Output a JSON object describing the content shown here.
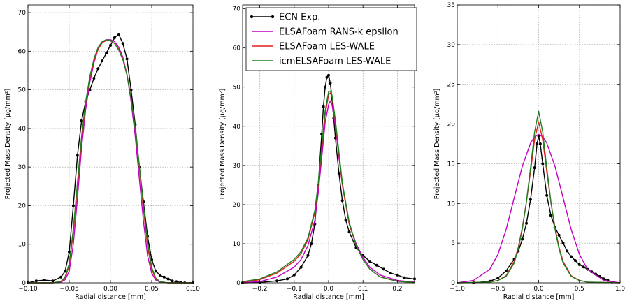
{
  "figure": {
    "legend": {
      "position": "upper-left of middle panel",
      "entries": [
        {
          "label": "ECN Exp.",
          "color": "#000000",
          "marker": "dot"
        },
        {
          "label": "ELSAFoam RANS-k epsilon",
          "color": "#c000c0",
          "marker": "none"
        },
        {
          "label": "ELSAFoam LES-WALE",
          "color": "#e02020",
          "marker": "none"
        },
        {
          "label": "icmELSAFoam LES-WALE",
          "color": "#207f20",
          "marker": "none"
        }
      ]
    }
  },
  "chart_data": [
    {
      "type": "line",
      "xlabel": "Radial distance [mm]",
      "ylabel": "Projected Mass Density [μg/mm²]",
      "xlim": [
        -0.1,
        0.1
      ],
      "ylim": [
        0,
        72
      ],
      "xticks": [
        -0.1,
        -0.05,
        0.0,
        0.05,
        0.1
      ],
      "xtick_labels": [
        "−0.10",
        "−0.05",
        "0.00",
        "0.05",
        "0.10"
      ],
      "yticks": [
        0,
        10,
        20,
        30,
        40,
        50,
        60,
        70
      ],
      "grid": true,
      "series": [
        {
          "name": "ECN Exp.",
          "color": "#000000",
          "marker": true,
          "x": [
            -0.1,
            -0.09,
            -0.08,
            -0.07,
            -0.06,
            -0.055,
            -0.05,
            -0.045,
            -0.04,
            -0.035,
            -0.03,
            -0.025,
            -0.02,
            -0.015,
            -0.01,
            -0.005,
            0.0,
            0.005,
            0.01,
            0.015,
            0.02,
            0.025,
            0.03,
            0.035,
            0.04,
            0.045,
            0.05,
            0.055,
            0.06,
            0.065,
            0.07,
            0.075,
            0.08,
            0.085,
            0.09,
            0.1
          ],
          "y": [
            0,
            0.5,
            0.7,
            0.5,
            1.5,
            3,
            8,
            20,
            33,
            42,
            47,
            50,
            53,
            55.5,
            57.5,
            59.5,
            61.5,
            63.5,
            64.4,
            62,
            58,
            50,
            41,
            30,
            21,
            12,
            6,
            3,
            2,
            1.5,
            1,
            0.5,
            0.3,
            0.1,
            0,
            0
          ]
        },
        {
          "name": "ELSAFoam RANS-k epsilon",
          "color": "#c000c0",
          "marker": false,
          "x": [
            -0.1,
            -0.07,
            -0.06,
            -0.055,
            -0.05,
            -0.045,
            -0.04,
            -0.035,
            -0.03,
            -0.025,
            -0.02,
            -0.015,
            -0.01,
            -0.005,
            0.0,
            0.005,
            0.01,
            0.015,
            0.02,
            0.025,
            0.03,
            0.035,
            0.04,
            0.045,
            0.05,
            0.055,
            0.06,
            0.07,
            0.1
          ],
          "y": [
            0,
            0,
            0.2,
            0.8,
            3,
            10,
            22,
            35,
            45,
            52,
            57,
            60.5,
            62.3,
            63,
            63,
            62.5,
            61,
            58.5,
            54,
            47,
            38,
            27,
            16,
            7,
            2.5,
            0.7,
            0.2,
            0,
            0
          ]
        },
        {
          "name": "ELSAFoam LES-WALE",
          "color": "#e02020",
          "marker": false,
          "x": [
            -0.1,
            -0.07,
            -0.06,
            -0.055,
            -0.05,
            -0.045,
            -0.04,
            -0.035,
            -0.03,
            -0.025,
            -0.02,
            -0.015,
            -0.01,
            -0.005,
            0.0,
            0.005,
            0.01,
            0.015,
            0.02,
            0.025,
            0.03,
            0.035,
            0.04,
            0.045,
            0.05,
            0.055,
            0.06,
            0.07,
            0.1
          ],
          "y": [
            0,
            0,
            0.3,
            1.2,
            4.5,
            13,
            25,
            37,
            46.5,
            53,
            57.5,
            60.5,
            62.2,
            62.8,
            62.7,
            62,
            60.5,
            58,
            54,
            48,
            40,
            30,
            19,
            9.5,
            3.5,
            1,
            0.3,
            0,
            0
          ]
        },
        {
          "name": "icmELSAFoam LES-WALE",
          "color": "#207f20",
          "marker": false,
          "x": [
            -0.1,
            -0.07,
            -0.06,
            -0.055,
            -0.05,
            -0.045,
            -0.04,
            -0.035,
            -0.03,
            -0.025,
            -0.02,
            -0.015,
            -0.01,
            -0.005,
            0.0,
            0.005,
            0.01,
            0.015,
            0.02,
            0.025,
            0.03,
            0.035,
            0.04,
            0.045,
            0.05,
            0.055,
            0.06,
            0.07,
            0.1
          ],
          "y": [
            0,
            0,
            0.4,
            1.5,
            5,
            14,
            26,
            38,
            47,
            53.5,
            58,
            61,
            62.5,
            63,
            62.8,
            62,
            60.3,
            57.8,
            53.8,
            47.8,
            40,
            30.5,
            20,
            10.5,
            4,
            1.2,
            0.3,
            0,
            0
          ]
        }
      ]
    },
    {
      "type": "line",
      "xlabel": "Radial distance [mm]",
      "ylabel": "Projected Mass Density [μg/mm²]",
      "xlim": [
        -0.25,
        0.25
      ],
      "ylim": [
        0,
        71
      ],
      "xticks": [
        -0.2,
        -0.1,
        0.0,
        0.1,
        0.2
      ],
      "xtick_labels": [
        "−0.2",
        "−0.1",
        "0.0",
        "0.1",
        "0.2"
      ],
      "yticks": [
        0,
        10,
        20,
        30,
        40,
        50,
        60,
        70
      ],
      "grid": true,
      "series": [
        {
          "name": "ECN Exp.",
          "color": "#000000",
          "marker": true,
          "x": [
            -0.25,
            -0.2,
            -0.15,
            -0.12,
            -0.1,
            -0.08,
            -0.06,
            -0.05,
            -0.04,
            -0.03,
            -0.02,
            -0.015,
            -0.01,
            -0.005,
            0.0,
            0.005,
            0.01,
            0.015,
            0.02,
            0.03,
            0.04,
            0.05,
            0.06,
            0.08,
            0.1,
            0.12,
            0.14,
            0.16,
            0.18,
            0.2,
            0.22,
            0.25
          ],
          "y": [
            0,
            0.1,
            0.5,
            1,
            2,
            4,
            7,
            10,
            15,
            25,
            38,
            45,
            50,
            52.5,
            53,
            51,
            47,
            42,
            37,
            28,
            21,
            16,
            13,
            9,
            7,
            5.5,
            4.5,
            3.5,
            2.5,
            2,
            1.3,
            1
          ]
        },
        {
          "name": "ELSAFoam RANS-k epsilon",
          "color": "#c000c0",
          "marker": false,
          "x": [
            -0.25,
            -0.2,
            -0.15,
            -0.1,
            -0.08,
            -0.06,
            -0.04,
            -0.03,
            -0.02,
            -0.01,
            0.0,
            0.005,
            0.01,
            0.02,
            0.03,
            0.04,
            0.06,
            0.08,
            0.1,
            0.12,
            0.15,
            0.2,
            0.25
          ],
          "y": [
            0.1,
            0.3,
            1.5,
            4,
            6,
            9.5,
            16,
            23,
            32,
            41,
            45.5,
            46.5,
            45.5,
            40,
            32,
            25,
            15,
            10,
            6.5,
            4,
            2,
            0.6,
            0.2
          ]
        },
        {
          "name": "ELSAFoam LES-WALE",
          "color": "#e02020",
          "marker": false,
          "x": [
            -0.25,
            -0.2,
            -0.15,
            -0.1,
            -0.08,
            -0.06,
            -0.04,
            -0.03,
            -0.02,
            -0.01,
            0.0,
            0.005,
            0.01,
            0.02,
            0.03,
            0.04,
            0.06,
            0.08,
            0.1,
            0.12,
            0.15,
            0.2,
            0.25
          ],
          "y": [
            0.2,
            0.8,
            2.5,
            5.5,
            7.5,
            11,
            18,
            25,
            34,
            43,
            48,
            48.5,
            47.5,
            41,
            33,
            25,
            15,
            9.5,
            6,
            3.5,
            1.5,
            0.4,
            0.1
          ]
        },
        {
          "name": "icmELSAFoam LES-WALE",
          "color": "#207f20",
          "marker": false,
          "x": [
            -0.25,
            -0.2,
            -0.15,
            -0.1,
            -0.08,
            -0.06,
            -0.04,
            -0.03,
            -0.02,
            -0.01,
            0.0,
            0.005,
            0.01,
            0.02,
            0.03,
            0.04,
            0.06,
            0.08,
            0.1,
            0.12,
            0.15,
            0.2,
            0.25
          ],
          "y": [
            0.3,
            1,
            2.8,
            6,
            8,
            11.5,
            18.5,
            25.5,
            35,
            44,
            48.8,
            49,
            48,
            41.5,
            33.5,
            25.5,
            15.5,
            9.5,
            6,
            3.5,
            1.5,
            0.4,
            0.1
          ]
        }
      ]
    },
    {
      "type": "line",
      "xlabel": "Radial distance [mm]",
      "ylabel": "Projected Mass Density [μg/mm²]",
      "xlim": [
        -1.0,
        1.0
      ],
      "ylim": [
        0,
        35
      ],
      "xticks": [
        -1.0,
        -0.5,
        0.0,
        0.5,
        1.0
      ],
      "xtick_labels": [
        "−1.0",
        "−0.5",
        "0.0",
        "0.5",
        "1.0"
      ],
      "yticks": [
        0,
        5,
        10,
        15,
        20,
        25,
        30,
        35
      ],
      "grid": true,
      "series": [
        {
          "name": "ECN Exp.",
          "color": "#000000",
          "marker": true,
          "x": [
            -0.8,
            -0.6,
            -0.5,
            -0.4,
            -0.3,
            -0.25,
            -0.2,
            -0.15,
            -0.1,
            -0.05,
            -0.02,
            0.0,
            0.02,
            0.05,
            0.1,
            0.15,
            0.2,
            0.25,
            0.3,
            0.35,
            0.4,
            0.45,
            0.5,
            0.55,
            0.6,
            0.65,
            0.7,
            0.75,
            0.8,
            0.85,
            0.9
          ],
          "y": [
            0,
            0.2,
            0.6,
            1.5,
            3,
            4,
            5.5,
            7.5,
            10.5,
            14.5,
            17.5,
            18.5,
            17.5,
            15,
            11,
            8.5,
            7,
            6,
            5,
            4,
            3.3,
            2.8,
            2.3,
            2,
            1.7,
            1.4,
            1.1,
            0.8,
            0.5,
            0.3,
            0.1
          ]
        },
        {
          "name": "ELSAFoam RANS-k epsilon",
          "color": "#c000c0",
          "marker": false,
          "x": [
            -1.0,
            -0.8,
            -0.6,
            -0.5,
            -0.4,
            -0.3,
            -0.2,
            -0.1,
            -0.05,
            0.0,
            0.05,
            0.1,
            0.2,
            0.3,
            0.4,
            0.5,
            0.6,
            0.8,
            1.0
          ],
          "y": [
            0,
            0.3,
            1.7,
            3.6,
            6.7,
            10.7,
            14.7,
            17.6,
            18.4,
            18.7,
            18.4,
            17.6,
            14.7,
            10.7,
            6.7,
            3.6,
            1.7,
            0.3,
            0
          ]
        },
        {
          "name": "ELSAFoam LES-WALE",
          "color": "#e02020",
          "marker": false,
          "x": [
            -1.0,
            -0.6,
            -0.5,
            -0.4,
            -0.3,
            -0.25,
            -0.2,
            -0.15,
            -0.1,
            -0.05,
            0.0,
            0.05,
            0.1,
            0.15,
            0.2,
            0.25,
            0.3,
            0.4,
            0.5,
            0.6,
            1.0
          ],
          "y": [
            0,
            0.1,
            0.3,
            0.9,
            2.7,
            4.5,
            7,
            10.2,
            14,
            18,
            20.3,
            18,
            14,
            10.2,
            7,
            4.5,
            2.7,
            0.9,
            0.3,
            0.1,
            0
          ]
        },
        {
          "name": "icmELSAFoam LES-WALE",
          "color": "#207f20",
          "marker": false,
          "x": [
            -1.0,
            -0.6,
            -0.5,
            -0.4,
            -0.3,
            -0.25,
            -0.2,
            -0.15,
            -0.1,
            -0.05,
            0.0,
            0.05,
            0.1,
            0.15,
            0.2,
            0.25,
            0.3,
            0.4,
            0.5,
            0.6,
            1.0
          ],
          "y": [
            0,
            0.1,
            0.3,
            0.8,
            2.5,
            4.3,
            6.8,
            10.2,
            14.5,
            19,
            21.6,
            19,
            14.5,
            10.2,
            6.8,
            4.3,
            2.5,
            0.8,
            0.3,
            0.1,
            0
          ]
        }
      ]
    }
  ]
}
